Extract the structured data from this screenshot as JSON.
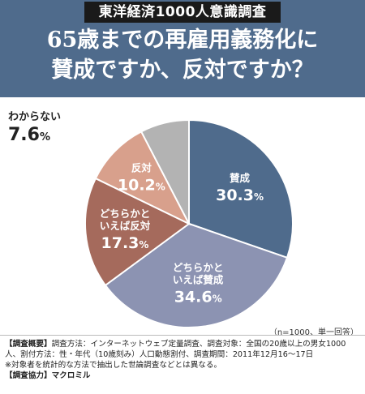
{
  "header": {
    "series_title": "東洋経済1000人意識調査",
    "question_line1": "65歳までの再雇用義務化に",
    "question_line2": "賛成ですか、反対ですか？"
  },
  "chart_data": {
    "type": "pie",
    "slices": [
      {
        "label_lines": [
          "賛成"
        ],
        "value": 30.3,
        "color": "#4f6b8c",
        "label_color": "#ffffff"
      },
      {
        "label_lines": [
          "どちらかと",
          "いえば賛成"
        ],
        "value": 34.6,
        "color": "#8c93b2",
        "label_color": "#ffffff"
      },
      {
        "label_lines": [
          "どちらかと",
          "いえば反対"
        ],
        "value": 17.3,
        "color": "#a56a5c",
        "label_color": "#ffffff"
      },
      {
        "label_lines": [
          "反対"
        ],
        "value": 10.2,
        "color": "#d8a08c",
        "label_color": "#ffffff"
      },
      {
        "label_lines": [
          "わからない"
        ],
        "value": 7.6,
        "color": "#b3b3b3",
        "label_color": "#222222",
        "outside": true
      }
    ],
    "unit": "%"
  },
  "outside_label": {
    "name": "わからない",
    "value": "7.6"
  },
  "unit": "%",
  "note": "（n=1000、単一回答）",
  "footer": {
    "survey_overview_head": "【調査概要】",
    "survey_overview_text": "調査方法：インターネットウェブ定量調査、調査対象：全国の20歳以上の男女1000人、割付方法：性・年代（10歳刻み）人口動態割付、調査期間：2011年12月16～17日",
    "footnote": "※対象者を統計的な方法で抽出した世論調査などとは異なる。",
    "cooperation_head": "【調査協力】",
    "cooperation_text": "マクロミル"
  }
}
